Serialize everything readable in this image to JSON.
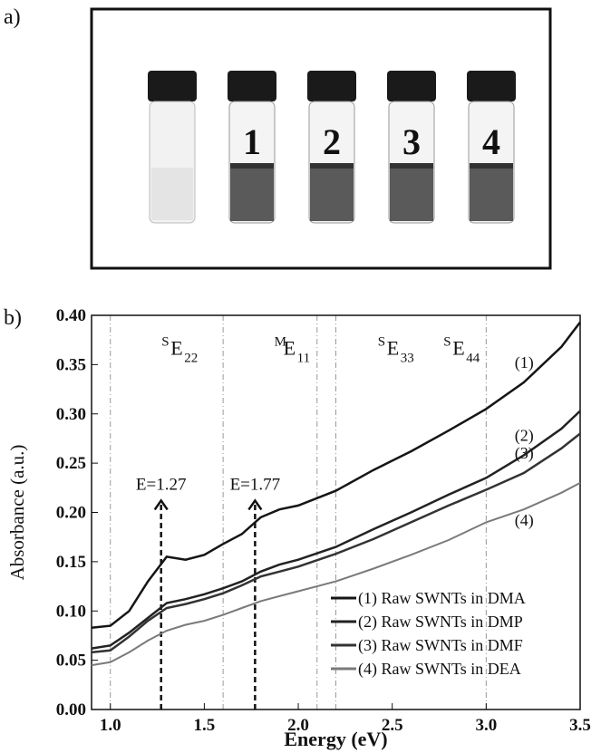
{
  "panel_a": {
    "label": "a)",
    "vial_labels": [
      "1",
      "2",
      "3",
      "4"
    ]
  },
  "chart_data": {
    "type": "line",
    "panel_label": "b)",
    "x_label": "Energy (eV)",
    "y_label": "Absorbance (a.u.)",
    "x": [
      0.9,
      1.0,
      1.1,
      1.2,
      1.3,
      1.4,
      1.5,
      1.6,
      1.7,
      1.8,
      1.9,
      2.0,
      2.2,
      2.4,
      2.6,
      2.8,
      3.0,
      3.2,
      3.4,
      3.5
    ],
    "series": [
      {
        "name": "(1) Raw SWNTs in DMA",
        "end_label": "(1)",
        "color": "#151515",
        "values": [
          0.083,
          0.085,
          0.1,
          0.13,
          0.155,
          0.152,
          0.157,
          0.168,
          0.178,
          0.195,
          0.203,
          0.207,
          0.222,
          0.243,
          0.262,
          0.283,
          0.305,
          0.332,
          0.368,
          0.393
        ]
      },
      {
        "name": "(2) Raw SWNTs in DMP",
        "end_label": "(2)",
        "color": "#222222",
        "values": [
          0.062,
          0.065,
          0.078,
          0.093,
          0.108,
          0.112,
          0.117,
          0.123,
          0.13,
          0.14,
          0.147,
          0.152,
          0.165,
          0.183,
          0.2,
          0.218,
          0.235,
          0.258,
          0.285,
          0.303
        ]
      },
      {
        "name": "(3) Raw SWNTs in DMF",
        "end_label": "(3)",
        "color": "#333333",
        "values": [
          0.058,
          0.06,
          0.074,
          0.09,
          0.103,
          0.107,
          0.112,
          0.118,
          0.126,
          0.135,
          0.14,
          0.145,
          0.158,
          0.173,
          0.19,
          0.207,
          0.223,
          0.24,
          0.265,
          0.28
        ]
      },
      {
        "name": "(4) Raw SWNTs in DEA",
        "end_label": "(4)",
        "color": "#7a7a7a",
        "values": [
          0.045,
          0.048,
          0.058,
          0.07,
          0.08,
          0.086,
          0.09,
          0.096,
          0.103,
          0.11,
          0.115,
          0.12,
          0.13,
          0.143,
          0.157,
          0.172,
          0.19,
          0.203,
          0.22,
          0.23
        ]
      }
    ],
    "xlim": [
      0.9,
      3.5
    ],
    "xticks": [
      {
        "value": 1,
        "label": "1.0"
      },
      {
        "value": 1.5,
        "label": "1.5"
      },
      {
        "value": 2,
        "label": "2.0"
      },
      {
        "value": 2.5,
        "label": "2.5"
      },
      {
        "value": 3,
        "label": "3.0"
      },
      {
        "value": 3.5,
        "label": "3.5"
      }
    ],
    "ylim": [
      0,
      0.4
    ],
    "yticks": [
      {
        "value": 0,
        "label": "0.00"
      },
      {
        "value": 0.05,
        "label": "0.05"
      },
      {
        "value": 0.1,
        "label": "0.10"
      },
      {
        "value": 0.15,
        "label": "0.15"
      },
      {
        "value": 0.2,
        "label": "0.20"
      },
      {
        "value": 0.25,
        "label": "0.25"
      },
      {
        "value": 0.3,
        "label": "0.30"
      },
      {
        "value": 0.35,
        "label": "0.35"
      },
      {
        "value": 0.4,
        "label": "0.40"
      }
    ],
    "region_lines": [
      1.0,
      1.6,
      2.1,
      2.2,
      3.0
    ],
    "region_labels": [
      {
        "sup": "S",
        "base": "E",
        "sub": "22",
        "x": 1.35
      },
      {
        "sup": "M",
        "base": "E",
        "sub": "11",
        "x": 1.95
      },
      {
        "sup": "S",
        "base": "E",
        "sub": "33",
        "x": 2.5
      },
      {
        "sup": "S",
        "base": "E",
        "sub": "44",
        "x": 2.85
      }
    ],
    "annotations": [
      {
        "text": "E=1.27",
        "x": 1.27
      },
      {
        "text": "E=1.77",
        "x": 1.77
      }
    ],
    "legend": "lower right"
  }
}
